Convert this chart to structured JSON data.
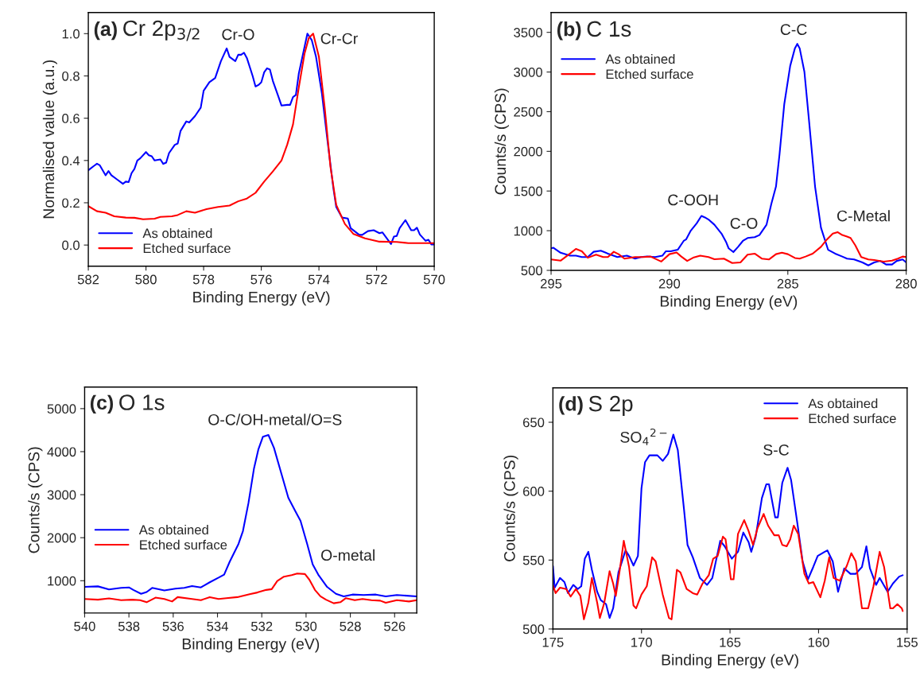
{
  "chart_data": [
    {
      "type": "line",
      "title": "(a) Cr 2p$_{3/2}$",
      "xlabel": "Binding Energy (eV)",
      "ylabel": "Normalised value (a.u.)",
      "xlim": [
        582,
        570
      ],
      "ylim": [
        -0.1,
        1.1
      ],
      "xticks": [
        582,
        580,
        578,
        576,
        574,
        572,
        570
      ],
      "yticks": [
        {
          "value": 0,
          "label": "0.0"
        },
        {
          "value": 0.2,
          "label": "0.2"
        },
        {
          "value": 0.4,
          "label": "0.4"
        },
        {
          "value": 0.6,
          "label": "0.6"
        },
        {
          "value": 0.8,
          "label": "0.8"
        },
        {
          "value": 1.0,
          "label": "1.0"
        }
      ],
      "legend": "bottom left",
      "grid": false,
      "annotations": [
        "Cr-O",
        "Cr-Cr"
      ],
      "series": [
        {
          "name": "As obtained",
          "color": "#0000ff",
          "x": [
            582.0,
            581.8,
            581.7,
            581.6,
            581.4,
            581.3,
            581.2,
            581.0,
            580.8,
            580.7,
            580.6,
            580.5,
            580.4,
            580.3,
            580.2,
            580.0,
            579.9,
            579.8,
            579.7,
            579.5,
            579.4,
            579.3,
            579.2,
            579.0,
            578.9,
            578.8,
            578.6,
            578.5,
            578.3,
            578.1,
            578.0,
            577.8,
            577.6,
            577.4,
            577.2,
            577.1,
            576.9,
            576.8,
            576.7,
            576.6,
            576.5,
            576.3,
            576.2,
            576.1,
            576.0,
            575.9,
            575.8,
            575.7,
            575.6,
            575.4,
            575.3,
            575.1,
            575.0,
            574.9,
            574.8,
            574.7,
            574.4,
            574.25,
            574.1,
            573.9,
            573.7,
            573.5,
            573.4,
            573.2,
            573.0,
            572.9,
            572.6,
            572.5,
            572.3,
            572.1,
            571.9,
            571.8,
            571.5,
            571.4,
            571.3,
            571.2,
            571.0,
            570.8,
            570.7,
            570.6,
            570.5,
            570.3,
            570.2,
            570.1,
            570.0
          ],
          "values": [
            0.354,
            0.375,
            0.385,
            0.377,
            0.33,
            0.35,
            0.33,
            0.31,
            0.29,
            0.3,
            0.298,
            0.34,
            0.36,
            0.4,
            0.41,
            0.44,
            0.425,
            0.42,
            0.4,
            0.405,
            0.384,
            0.39,
            0.435,
            0.474,
            0.48,
            0.54,
            0.585,
            0.58,
            0.61,
            0.65,
            0.73,
            0.77,
            0.79,
            0.87,
            0.93,
            0.89,
            0.87,
            0.9,
            0.9,
            0.91,
            0.885,
            0.8,
            0.75,
            0.757,
            0.77,
            0.817,
            0.836,
            0.83,
            0.777,
            0.7,
            0.66,
            0.663,
            0.663,
            0.7,
            0.71,
            0.81,
            1.0,
            0.97,
            0.89,
            0.72,
            0.49,
            0.27,
            0.18,
            0.13,
            0.126,
            0.08,
            0.048,
            0.048,
            0.066,
            0.07,
            0.056,
            0.06,
            0.005,
            0.04,
            0.043,
            0.08,
            0.118,
            0.07,
            0.07,
            0.082,
            0.05,
            0.02,
            0.025,
            0.003,
            0.003
          ]
        },
        {
          "name": "Etched surface",
          "color": "#ff0000",
          "x": [
            582.0,
            581.7,
            581.4,
            581.1,
            580.7,
            580.4,
            580.1,
            579.7,
            579.5,
            579.1,
            578.9,
            578.6,
            578.3,
            577.9,
            577.5,
            577.1,
            576.8,
            576.5,
            576.2,
            575.9,
            575.6,
            575.3,
            575.1,
            574.9,
            574.7,
            574.5,
            574.35,
            574.2,
            574.0,
            573.8,
            573.6,
            573.4,
            573.1,
            572.8,
            572.4,
            571.9,
            571.3,
            570.9,
            570.4,
            570.0
          ],
          "values": [
            0.184,
            0.16,
            0.153,
            0.136,
            0.13,
            0.129,
            0.122,
            0.125,
            0.133,
            0.136,
            0.142,
            0.16,
            0.153,
            0.17,
            0.18,
            0.187,
            0.207,
            0.22,
            0.247,
            0.3,
            0.348,
            0.4,
            0.475,
            0.57,
            0.744,
            0.905,
            0.98,
            1.0,
            0.89,
            0.65,
            0.37,
            0.19,
            0.1,
            0.052,
            0.032,
            0.016,
            0.015,
            0.009,
            0.009,
            0.009
          ]
        }
      ]
    },
    {
      "type": "line",
      "title": "(b) C 1s",
      "xlabel": "Binding Energy (eV)",
      "ylabel": "Counts/s (CPS)",
      "xlim": [
        295,
        280
      ],
      "ylim": [
        500,
        3750
      ],
      "xticks": [
        295,
        290,
        285,
        280
      ],
      "yticks": [
        500,
        1000,
        1500,
        2000,
        2500,
        3000,
        3500
      ],
      "legend": "top left",
      "grid": false,
      "annotations": [
        "C-C",
        "C-OOH",
        "C-O",
        "C-Metal"
      ],
      "series": [
        {
          "name": "As obtained",
          "color": "#0000ff",
          "x": [
            295.0,
            294.9,
            294.6,
            294.2,
            293.95,
            293.7,
            293.45,
            293.2,
            292.9,
            292.6,
            292.2,
            291.8,
            291.45,
            291.2,
            290.95,
            290.6,
            290.3,
            290.15,
            289.95,
            289.65,
            289.4,
            289.3,
            289.1,
            288.85,
            288.65,
            288.5,
            288.35,
            288.1,
            287.8,
            287.6,
            287.5,
            287.3,
            287.1,
            286.9,
            286.7,
            286.4,
            286.2,
            285.9,
            285.7,
            285.5,
            285.35,
            285.15,
            284.9,
            284.7,
            284.6,
            284.5,
            284.3,
            284.1,
            283.85,
            283.6,
            283.3,
            283.0,
            282.7,
            282.5,
            282.2,
            281.85,
            281.6,
            281.35,
            281.1,
            280.85,
            280.6,
            280.4,
            280.15,
            280.0
          ],
          "values": [
            778,
            785,
            722,
            685,
            685,
            667,
            667,
            734,
            748,
            711,
            667,
            685,
            648,
            667,
            674,
            667,
            685,
            741,
            741,
            760,
            871,
            889,
            1000,
            1093,
            1186,
            1167,
            1141,
            1075,
            963,
            852,
            778,
            730,
            797,
            871,
            908,
            919,
            945,
            1075,
            1334,
            1557,
            1965,
            2595,
            3077,
            3300,
            3355,
            3300,
            3003,
            2373,
            1557,
            1038,
            760,
            711,
            674,
            648,
            637,
            600,
            563,
            600,
            619,
            574,
            574,
            619,
            637,
            600
          ]
        },
        {
          "name": "Etched surface",
          "color": "#ff0000",
          "x": [
            295.0,
            294.6,
            294.2,
            293.95,
            293.7,
            293.45,
            293.1,
            292.8,
            292.6,
            292.35,
            292.15,
            291.9,
            291.45,
            291.1,
            290.8,
            290.35,
            290.0,
            289.7,
            289.5,
            289.25,
            289.0,
            288.7,
            288.35,
            288.1,
            287.7,
            287.35,
            287.0,
            286.7,
            286.4,
            286.1,
            285.8,
            285.5,
            285.25,
            285.0,
            284.7,
            284.5,
            284.25,
            283.95,
            283.6,
            283.35,
            283.1,
            282.9,
            282.7,
            282.5,
            282.35,
            282.15,
            281.9,
            281.6,
            281.35,
            280.95,
            280.6,
            280.35,
            280.15,
            280.0
          ],
          "values": [
            637,
            622,
            711,
            771,
            741,
            659,
            697,
            667,
            667,
            734,
            704,
            648,
            667,
            667,
            674,
            611,
            704,
            726,
            674,
            619,
            659,
            685,
            667,
            641,
            648,
            593,
            600,
            697,
            711,
            648,
            637,
            704,
            722,
            704,
            656,
            648,
            674,
            711,
            797,
            889,
            963,
            982,
            945,
            926,
            908,
            815,
            667,
            637,
            630,
            611,
            622,
            648,
            674,
            667
          ]
        }
      ]
    },
    {
      "type": "line",
      "title": "(c) O 1s",
      "xlabel": "Binding Energy (eV)",
      "ylabel": "Counts/s (CPS)",
      "xlim": [
        540,
        525
      ],
      "ylim": [
        250,
        5500
      ],
      "xticks": [
        540,
        538,
        536,
        534,
        532,
        530,
        528,
        526
      ],
      "yticks": [
        1000,
        2000,
        3000,
        4000,
        5000
      ],
      "legend": "left",
      "grid": false,
      "annotations": [
        "O-C/OH-metal/O=S",
        "O-metal"
      ],
      "series": [
        {
          "name": "As obtained",
          "color": "#0000ff",
          "x": [
            540.0,
            539.4,
            538.9,
            538.35,
            538.0,
            537.8,
            537.45,
            537.2,
            536.95,
            536.4,
            535.9,
            535.5,
            535.15,
            534.75,
            534.35,
            533.95,
            533.7,
            533.45,
            533.05,
            532.85,
            532.6,
            532.35,
            532.15,
            531.95,
            531.7,
            531.45,
            531.1,
            530.8,
            530.5,
            530.25,
            529.95,
            529.7,
            529.45,
            529.05,
            528.65,
            528.3,
            527.9,
            527.4,
            526.85,
            526.4,
            525.9,
            525.0
          ],
          "values": [
            857,
            869,
            798,
            833,
            845,
            786,
            696,
            738,
            833,
            774,
            815,
            833,
            875,
            845,
            964,
            1071,
            1143,
            1440,
            1857,
            2155,
            2809,
            3613,
            4059,
            4345,
            4387,
            4089,
            3464,
            2929,
            2631,
            2393,
            1857,
            1381,
            1143,
            857,
            696,
            637,
            679,
            667,
            679,
            637,
            667,
            637
          ]
        },
        {
          "name": "Etched surface",
          "color": "#ff0000",
          "x": [
            540.0,
            539.4,
            538.9,
            538.35,
            537.85,
            537.5,
            537.2,
            536.8,
            536.4,
            536.05,
            535.8,
            535.15,
            534.75,
            534.35,
            533.95,
            533.6,
            533.1,
            532.55,
            532.2,
            531.8,
            531.55,
            531.3,
            531.0,
            530.65,
            530.4,
            530.05,
            529.85,
            529.6,
            529.35,
            529.1,
            528.75,
            528.45,
            528.2,
            527.8,
            527.45,
            527.05,
            526.65,
            526.4,
            525.9,
            525.35,
            525.0
          ],
          "values": [
            577,
            560,
            589,
            548,
            560,
            548,
            500,
            607,
            577,
            518,
            619,
            577,
            548,
            619,
            577,
            595,
            619,
            685,
            726,
            786,
            804,
            994,
            1095,
            1131,
            1167,
            1155,
            1024,
            786,
            637,
            560,
            476,
            500,
            595,
            548,
            577,
            548,
            536,
            488,
            548,
            518,
            548
          ]
        }
      ]
    },
    {
      "type": "line",
      "title": "(d) S 2p",
      "xlabel": "Binding Energy (eV)",
      "ylabel": "Counts/s (CPS)",
      "xlim": [
        175,
        155
      ],
      "ylim": [
        500,
        675
      ],
      "xticks": [
        175,
        170,
        165,
        160,
        155
      ],
      "yticks": [
        500,
        550,
        600,
        650
      ],
      "legend": "top right",
      "grid": false,
      "annotations": [
        "SO$_{4}$$^{2−}$",
        "S-C"
      ],
      "series": [
        {
          "name": "As obtained",
          "color": "#0000ff",
          "x": [
            175.0,
            174.9,
            174.6,
            174.35,
            174.15,
            173.85,
            173.6,
            173.4,
            173.2,
            173.0,
            172.8,
            172.5,
            172.3,
            172.0,
            171.8,
            171.6,
            171.3,
            170.9,
            170.7,
            170.45,
            170.2,
            170.0,
            169.8,
            169.55,
            169.1,
            168.8,
            168.5,
            168.2,
            167.95,
            167.6,
            167.4,
            167.1,
            166.7,
            166.3,
            166.0,
            165.55,
            165.3,
            164.9,
            164.55,
            164.25,
            163.95,
            163.8,
            163.55,
            163.2,
            162.95,
            162.8,
            162.45,
            162.3,
            162.05,
            161.75,
            161.55,
            161.2,
            160.9,
            160.6,
            160.3,
            160.05,
            159.65,
            159.5,
            159.2,
            158.9,
            158.55,
            158.2,
            157.9,
            157.55,
            157.3,
            157.1,
            156.75,
            156.55,
            156.1,
            155.8,
            155.45,
            155.25
          ],
          "values": [
            545.7,
            530,
            537,
            534,
            526,
            532,
            529,
            531,
            551,
            556,
            543,
            527,
            521,
            518,
            508,
            515,
            541,
            557,
            553,
            546,
            553,
            602,
            621,
            626,
            626,
            622,
            627,
            641,
            630,
            587,
            561,
            552,
            537,
            532,
            537,
            564,
            560,
            551,
            556,
            570,
            563,
            556,
            567,
            595,
            605,
            605,
            581,
            581,
            606,
            617,
            608,
            577,
            549,
            536,
            545,
            553,
            556,
            557,
            549,
            527,
            544,
            540,
            540,
            545,
            560,
            544,
            532,
            537,
            527,
            533,
            538,
            539
          ]
        },
        {
          "name": "Etched surface",
          "color": "#ff0000",
          "x": [
            175.0,
            174.85,
            174.6,
            174.25,
            174.0,
            173.7,
            173.45,
            173.25,
            173.0,
            172.8,
            172.5,
            172.35,
            172.1,
            171.8,
            171.6,
            171.45,
            171.2,
            171.0,
            170.7,
            170.45,
            170.3,
            170.0,
            169.7,
            169.4,
            169.2,
            168.8,
            168.45,
            168.3,
            168.0,
            167.8,
            167.45,
            167.1,
            166.85,
            166.55,
            166.2,
            165.95,
            165.7,
            165.4,
            165.25,
            164.95,
            164.8,
            164.55,
            164.2,
            163.95,
            163.7,
            163.45,
            163.1,
            162.85,
            162.5,
            162.25,
            162.05,
            161.8,
            161.6,
            161.4,
            161.15,
            160.8,
            160.55,
            160.3,
            159.9,
            159.65,
            159.4,
            159.15,
            158.8,
            158.4,
            158.15,
            157.9,
            157.55,
            157.2,
            156.9,
            156.55,
            156.3,
            155.95,
            155.8,
            155.55,
            155.3,
            155.25
          ],
          "values": [
            531.6,
            526,
            530,
            529,
            523.5,
            529,
            524,
            507,
            519,
            537,
            519,
            508,
            519,
            542,
            533,
            524,
            545,
            564,
            545,
            517,
            515,
            525,
            531,
            552,
            549,
            525,
            508,
            507,
            543,
            541,
            529,
            526,
            525,
            533,
            539,
            551,
            553,
            567,
            565,
            536,
            536,
            569,
            579,
            571,
            561,
            573,
            583.5,
            575,
            568,
            568,
            561,
            560,
            565,
            575,
            569,
            540,
            533,
            534,
            523,
            535,
            552,
            537,
            535,
            546,
            555,
            549,
            515,
            515,
            531,
            556,
            545,
            515,
            515,
            518,
            515,
            513
          ]
        }
      ]
    }
  ]
}
